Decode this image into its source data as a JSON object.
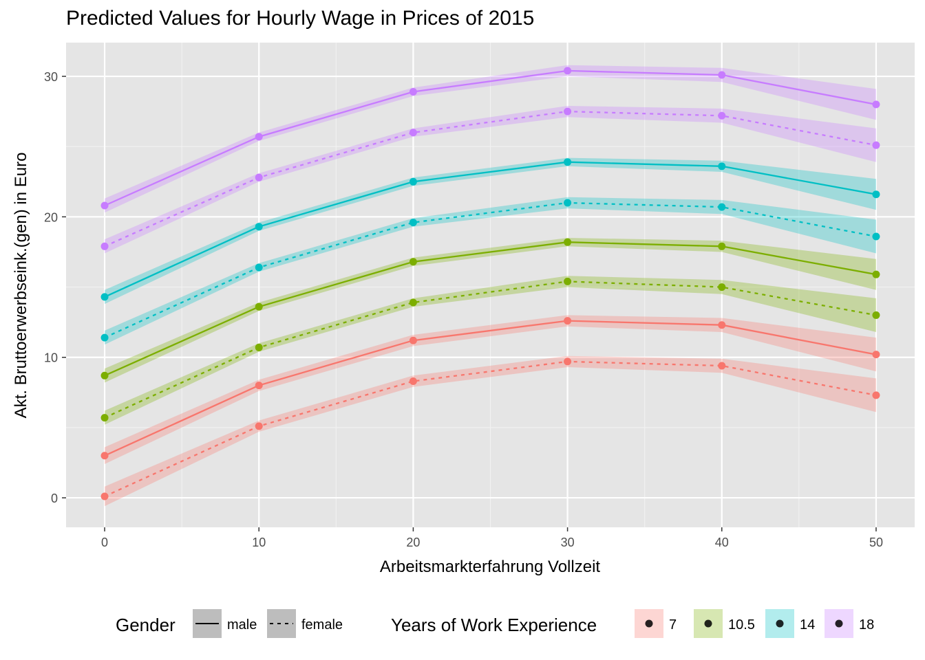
{
  "chart_data": {
    "type": "line",
    "title": "Predicted Values for Hourly Wage in Prices of 2015",
    "xlabel": "Arbeitsmarkterfahrung Vollzeit",
    "ylabel": "Akt. Bruttoerwerbseink.(gen) in Euro",
    "x": [
      0,
      10,
      20,
      30,
      40,
      50
    ],
    "xlim": [
      -2.5,
      52.5
    ],
    "ylim": [
      -2.1,
      32.4
    ],
    "x_ticks": [
      0,
      10,
      20,
      30,
      40,
      50
    ],
    "y_ticks": [
      0,
      10,
      20,
      30
    ],
    "grid": true,
    "background": "#e5e5e5",
    "legend_position": "bottom",
    "legend": {
      "gender_title": "Gender",
      "gender_items": [
        {
          "key": "male",
          "label": "male",
          "linetype": "solid"
        },
        {
          "key": "female",
          "label": "female",
          "linetype": "dashed"
        }
      ],
      "group_title": "Years of Work Experience",
      "group_items": [
        {
          "key": "7",
          "label": "7",
          "color": "#f8766d"
        },
        {
          "key": "10.5",
          "label": "10.5",
          "color": "#7cae00"
        },
        {
          "key": "14",
          "label": "14",
          "color": "#00bfc4"
        },
        {
          "key": "18",
          "label": "18",
          "color": "#c77cff"
        }
      ]
    },
    "series": [
      {
        "group": "7",
        "gender": "male",
        "values": [
          3.0,
          8.0,
          11.2,
          12.6,
          12.3,
          10.2
        ],
        "lower": [
          2.4,
          7.6,
          10.8,
          12.2,
          11.8,
          9.0
        ],
        "upper": [
          3.6,
          8.4,
          11.6,
          13.0,
          12.8,
          11.4
        ]
      },
      {
        "group": "7",
        "gender": "female",
        "values": [
          0.1,
          5.1,
          8.3,
          9.7,
          9.4,
          7.3
        ],
        "lower": [
          -0.6,
          4.7,
          7.9,
          9.3,
          8.9,
          6.1
        ],
        "upper": [
          0.8,
          5.5,
          8.7,
          10.1,
          9.9,
          8.5
        ]
      },
      {
        "group": "10.5",
        "gender": "male",
        "values": [
          8.7,
          13.6,
          16.8,
          18.2,
          17.9,
          15.9
        ],
        "lower": [
          8.2,
          13.3,
          16.5,
          17.9,
          17.5,
          14.8
        ],
        "upper": [
          9.2,
          13.9,
          17.1,
          18.5,
          18.3,
          17.0
        ]
      },
      {
        "group": "10.5",
        "gender": "female",
        "values": [
          5.7,
          10.7,
          13.9,
          15.4,
          15.0,
          13.0
        ],
        "lower": [
          5.2,
          10.4,
          13.6,
          15.0,
          14.5,
          11.8
        ],
        "upper": [
          6.2,
          11.0,
          14.2,
          15.8,
          15.5,
          14.2
        ]
      },
      {
        "group": "14",
        "gender": "male",
        "values": [
          14.3,
          19.3,
          22.5,
          23.9,
          23.6,
          21.6
        ],
        "lower": [
          13.8,
          19.0,
          22.2,
          23.6,
          23.2,
          20.5
        ],
        "upper": [
          14.8,
          19.6,
          22.8,
          24.2,
          24.0,
          22.7
        ]
      },
      {
        "group": "14",
        "gender": "female",
        "values": [
          11.4,
          16.4,
          19.6,
          21.0,
          20.7,
          18.6
        ],
        "lower": [
          10.9,
          16.1,
          19.3,
          20.6,
          20.2,
          17.4
        ],
        "upper": [
          11.9,
          16.7,
          19.9,
          21.4,
          21.2,
          19.8
        ]
      },
      {
        "group": "18",
        "gender": "male",
        "values": [
          20.8,
          25.7,
          28.9,
          30.4,
          30.1,
          28.0
        ],
        "lower": [
          20.3,
          25.4,
          28.6,
          30.0,
          29.6,
          26.9
        ],
        "upper": [
          21.3,
          26.0,
          29.2,
          30.8,
          30.6,
          29.1
        ]
      },
      {
        "group": "18",
        "gender": "female",
        "values": [
          17.9,
          22.8,
          26.0,
          27.5,
          27.2,
          25.1
        ],
        "lower": [
          17.4,
          22.5,
          25.7,
          27.1,
          26.7,
          23.9
        ],
        "upper": [
          18.4,
          23.1,
          26.3,
          27.9,
          27.7,
          26.3
        ]
      }
    ]
  }
}
